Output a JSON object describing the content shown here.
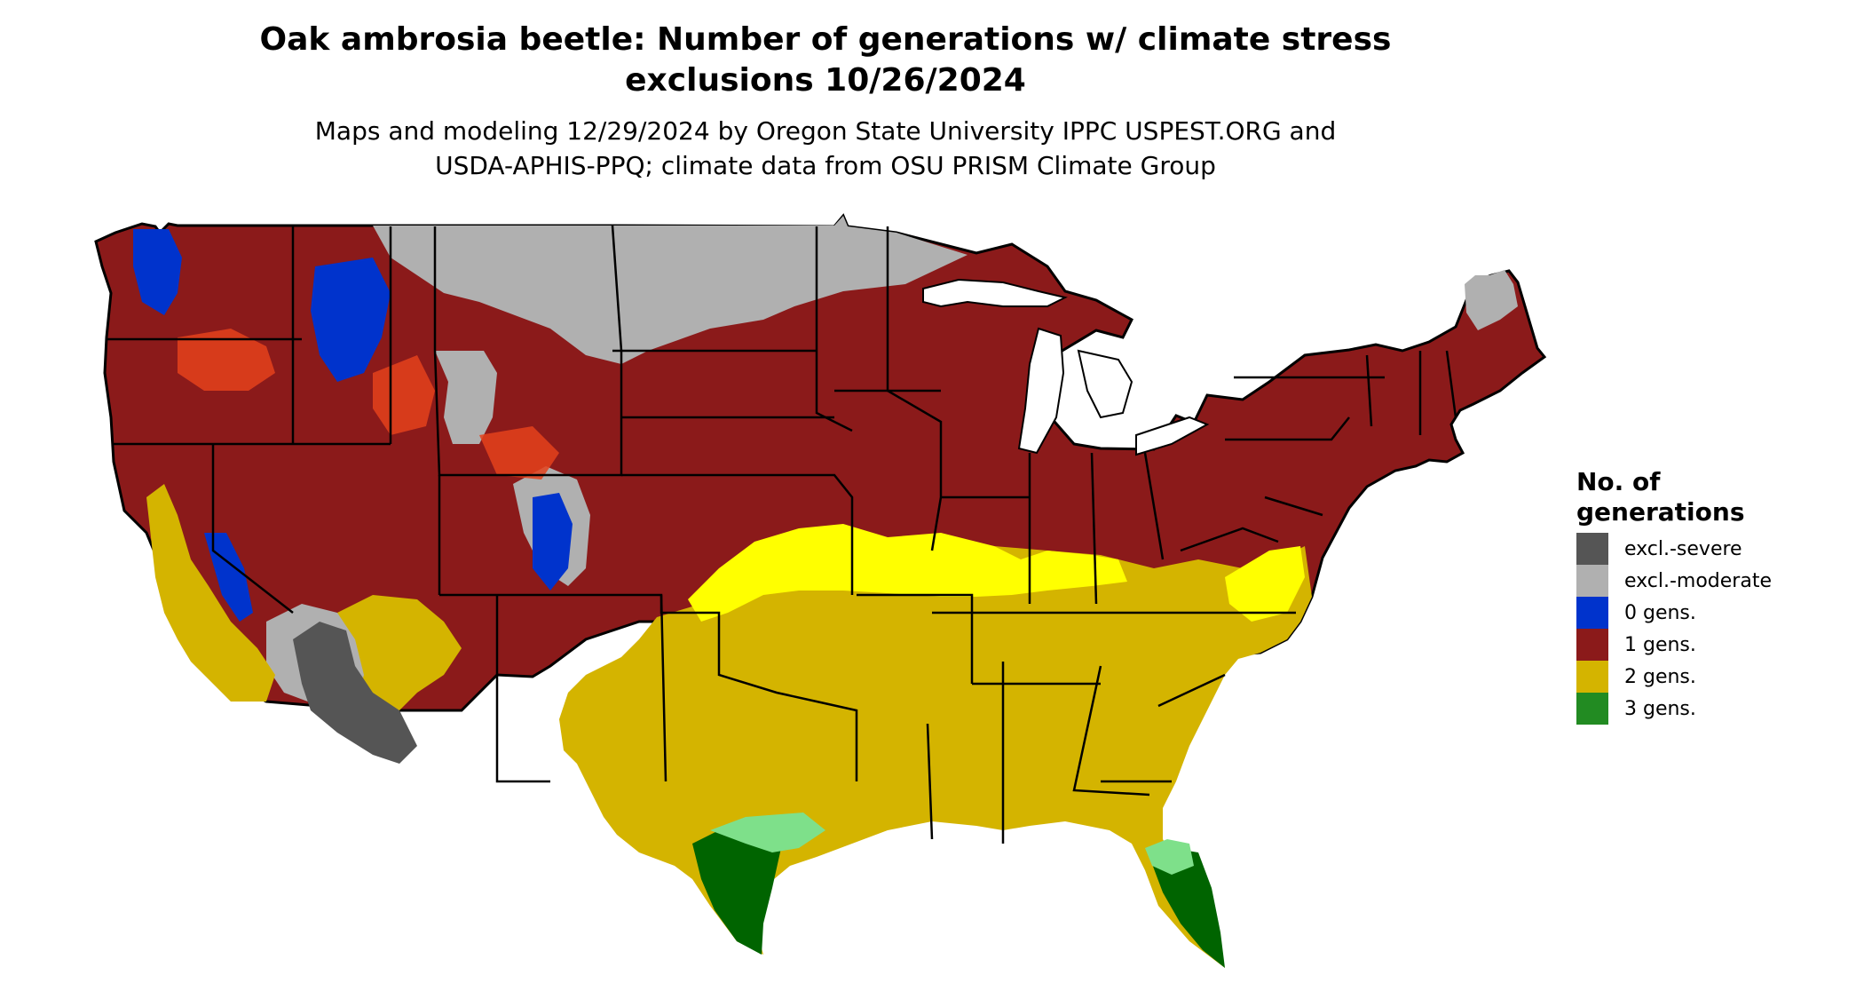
{
  "title_line1": "Oak ambrosia beetle: Number of generations w/ climate stress",
  "title_line2": "exclusions 10/26/2024",
  "subtitle_line1": "Maps and modeling 12/29/2024 by Oregon State University IPPC USPEST.ORG and",
  "subtitle_line2": "USDA-APHIS-PPQ; climate data from OSU PRISM Climate Group",
  "legend": {
    "title_line1": "No. of",
    "title_line2": "generations",
    "items": [
      {
        "label": "excl.-severe",
        "color": "#555555"
      },
      {
        "label": "excl.-moderate",
        "color": "#b0b0b0"
      },
      {
        "label": "0 gens.",
        "color": "#0033cc"
      },
      {
        "label": "1 gens.",
        "color": "#8b1a1a"
      },
      {
        "label": "2 gens.",
        "color": "#d4b400"
      },
      {
        "label": "3 gens.",
        "color": "#228b22"
      }
    ]
  },
  "colors": {
    "excl_severe": "#555555",
    "excl_moderate": "#b0b0b0",
    "gens0": "#0033cc",
    "gens1": "#8b1a1a",
    "gens1_light": "#e4421c",
    "gens2": "#d4b400",
    "gens2_light": "#ffff00",
    "gens3": "#006400",
    "gens3_light": "#7ee08a",
    "border": "#000000"
  }
}
